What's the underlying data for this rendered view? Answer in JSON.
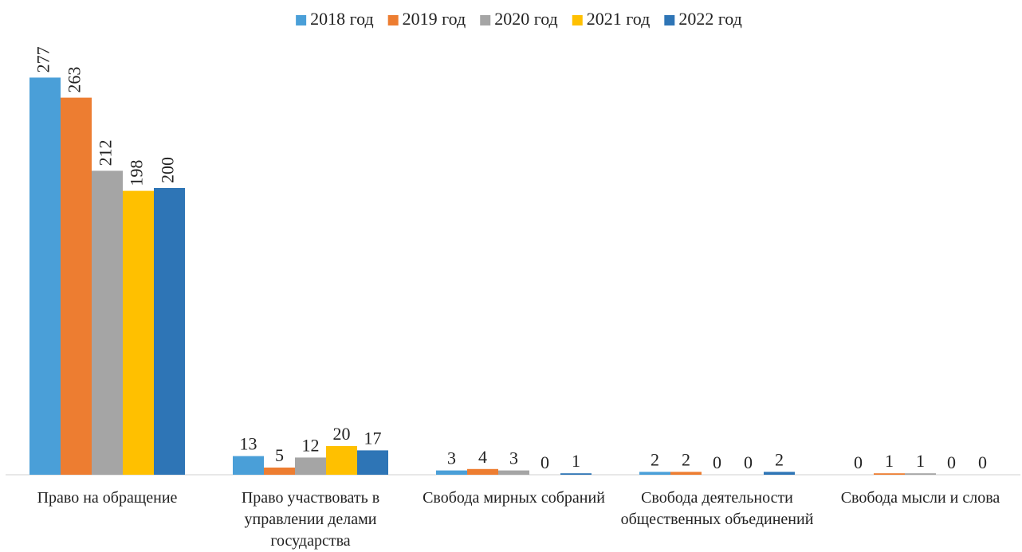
{
  "chart_data": {
    "type": "bar",
    "categories": [
      "Право на обращение",
      "Право участвовать в управлении делами государства",
      "Свобода мирных собраний",
      "Свобода деятельности общественных объединений",
      "Свобода мысли и слова"
    ],
    "series": [
      {
        "name": "2018 год",
        "color": "#4a9fd8",
        "values": [
          277,
          13,
          3,
          2,
          0
        ]
      },
      {
        "name": "2019 год",
        "color": "#ed7d31",
        "values": [
          263,
          5,
          4,
          2,
          1
        ]
      },
      {
        "name": "2020 год",
        "color": "#a5a5a5",
        "values": [
          212,
          12,
          3,
          0,
          1
        ]
      },
      {
        "name": "2021 год",
        "color": "#ffc000",
        "values": [
          198,
          20,
          0,
          0,
          0
        ]
      },
      {
        "name": "2022 год",
        "color": "#2e75b6",
        "values": [
          200,
          17,
          1,
          2,
          0
        ]
      }
    ],
    "ylim": [
      0,
      300
    ]
  }
}
